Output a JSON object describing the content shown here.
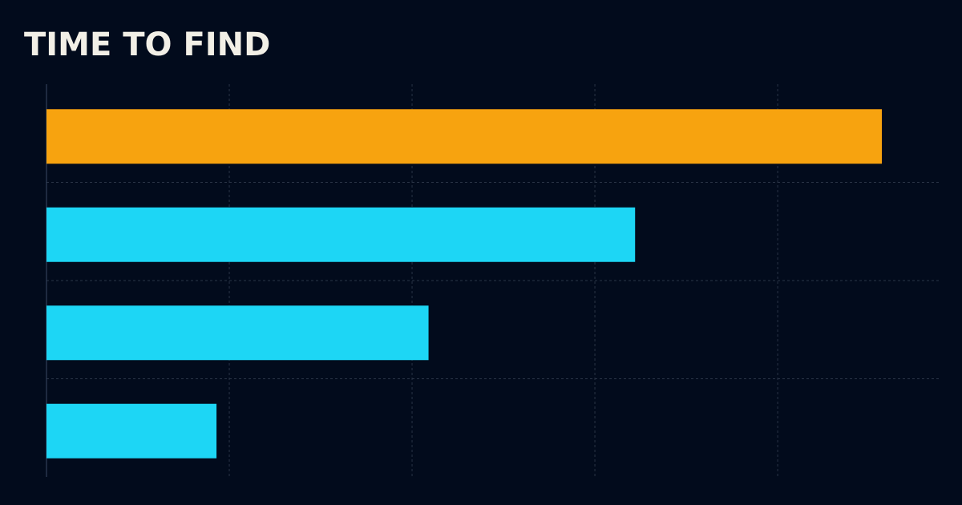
{
  "chart_data": {
    "type": "hbar",
    "title": "TIME TO FIND",
    "categories": [
      null,
      null,
      null,
      null
    ],
    "values": [
      4.57,
      3.22,
      2.09,
      0.93
    ],
    "colors": [
      "#f7a30f",
      "#1dd6f5",
      "#1dd6f5",
      "#1dd6f5"
    ],
    "xlim": [
      0,
      4.89
    ],
    "xticks": [
      0,
      1,
      2,
      3,
      4
    ],
    "grid": true
  }
}
